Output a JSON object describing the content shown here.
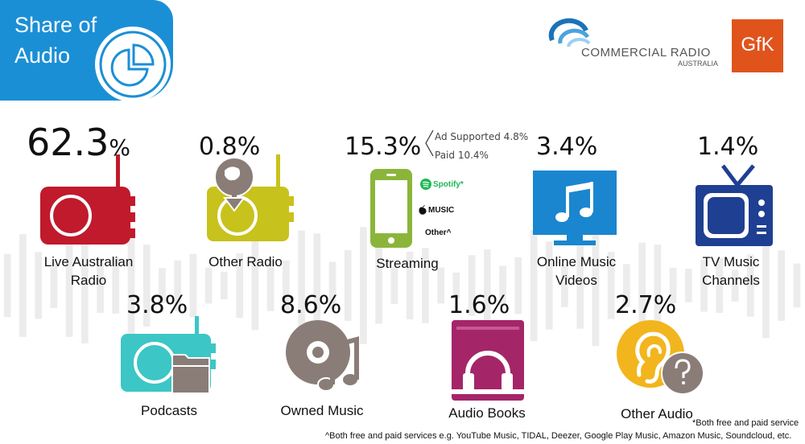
{
  "title": {
    "line1": "Share of",
    "line2": "Audio"
  },
  "logos": {
    "cra_main": "COMMERCIAL RADIO",
    "cra_sub": "AUSTRALIA",
    "gfk": "GfK"
  },
  "colors": {
    "title_blue": "#1b8fd6",
    "live_radio": "#c01a2c",
    "other_radio": "#c8c21c",
    "streaming": "#8bb53a",
    "online_video": "#1a86cf",
    "tv": "#1f3f92",
    "podcasts": "#3cc6c6",
    "owned_music": "#8a7d77",
    "audio_books": "#a52569",
    "other_audio": "#f2b51d",
    "gfk_orange": "#e0541c"
  },
  "streaming": {
    "ad_supported": "Ad Supported 4.8%",
    "paid": "Paid 10.4%",
    "spotify": "Spotify*",
    "apple": "MUSIC",
    "other": "Other^"
  },
  "chart_data": {
    "type": "infographic",
    "title": "Share of Audio",
    "unit": "%",
    "items": [
      {
        "label": "Live Australian Radio",
        "value": 62.3,
        "value_text": "62.3",
        "color": "#c01a2c",
        "icon": "radio-icon"
      },
      {
        "label": "Other Radio",
        "value": 0.8,
        "value_text": "0.8%",
        "color": "#c8c21c",
        "icon": "online-radio-icon"
      },
      {
        "label": "Streaming",
        "value": 15.3,
        "value_text": "15.3%",
        "color": "#8bb53a",
        "icon": "phone-icon",
        "breakdown": [
          {
            "label": "Ad Supported",
            "value": 4.8
          },
          {
            "label": "Paid",
            "value": 10.4
          }
        ]
      },
      {
        "label": "Online Music Videos",
        "value": 3.4,
        "value_text": "3.4%",
        "color": "#1a86cf",
        "icon": "monitor-music-icon"
      },
      {
        "label": "TV Music Channels",
        "value": 1.4,
        "value_text": "1.4%",
        "color": "#1f3f92",
        "icon": "tv-icon"
      },
      {
        "label": "Podcasts",
        "value": 3.8,
        "value_text": "3.8%",
        "color": "#3cc6c6",
        "icon": "podcast-radio-icon"
      },
      {
        "label": "Owned Music",
        "value": 8.6,
        "value_text": "8.6%",
        "color": "#8a7d77",
        "icon": "cd-music-icon"
      },
      {
        "label": "Audio Books",
        "value": 1.6,
        "value_text": "1.6%",
        "color": "#a52569",
        "icon": "book-headphones-icon"
      },
      {
        "label": "Other Audio",
        "value": 2.7,
        "value_text": "2.7%",
        "color": "#f2b51d",
        "icon": "ear-question-icon"
      }
    ]
  },
  "labels": {
    "live_l1": "Live Australian",
    "live_l2": "Radio",
    "other_radio": "Other Radio",
    "streaming": "Streaming",
    "video_l1": "Online Music",
    "video_l2": "Videos",
    "tv_l1": "TV Music",
    "tv_l2": "Channels",
    "podcasts": "Podcasts",
    "owned": "Owned Music",
    "books": "Audio Books",
    "other_audio": "Other Audio"
  },
  "footnotes": {
    "star": "*Both free and paid service",
    "caret": "^Both free and paid services e.g. YouTube Music, TIDAL, Deezer, Google Play Music, Amazon Music, Soundcloud, etc."
  }
}
